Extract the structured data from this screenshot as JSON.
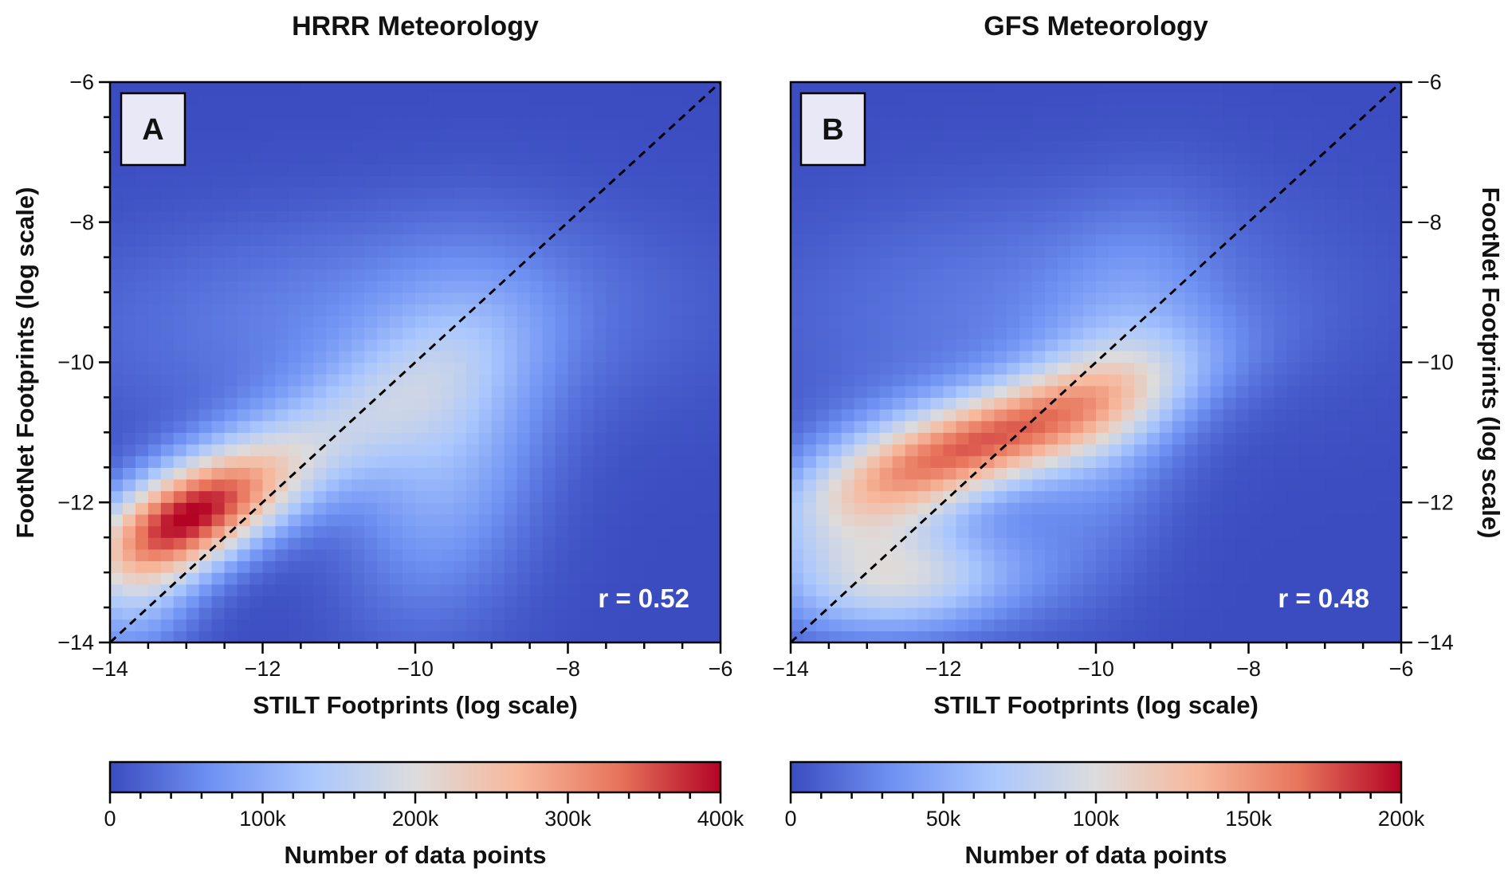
{
  "colors": {
    "colormap": [
      "#3b4cc0",
      "#6f92f3",
      "#aac7fd",
      "#dddcdc",
      "#f7b89c",
      "#e7745b",
      "#b40426"
    ],
    "diagonal_line": "#000000",
    "letter_box_fill": "#e8e8f6",
    "annotation_text": "#ffffff"
  },
  "chart_data": [
    {
      "type": "heatmap",
      "title": "HRRR Meteorology",
      "panel_label": "A",
      "annotation": "r = 0.52",
      "xlabel": "STILT Footprints (log scale)",
      "ylabel": "FootNet Footprints (log scale)",
      "xlim": [
        -14,
        -6
      ],
      "ylim": [
        -14,
        -6
      ],
      "xticks": [
        -14,
        -12,
        -10,
        -8,
        -6
      ],
      "yticks": [
        -14,
        -12,
        -10,
        -8,
        -6
      ],
      "x_tick_labels": [
        "−14",
        "−12",
        "−10",
        "−8",
        "−6"
      ],
      "y_tick_labels": [
        "−14",
        "−12",
        "−10",
        "−8",
        "−6"
      ],
      "y_axis_side": "left",
      "grid": false,
      "reference_line": "y = x",
      "colorbar": {
        "label": "Number of data points",
        "range": [
          0,
          400000
        ],
        "ticks": [
          0,
          100000,
          200000,
          300000,
          400000
        ],
        "tick_labels": [
          "0",
          "100k",
          "200k",
          "300k",
          "400k"
        ]
      },
      "density_peak": {
        "x": -13.0,
        "y": -12.2,
        "count": 330000
      }
    },
    {
      "type": "heatmap",
      "title": "GFS Meteorology",
      "panel_label": "B",
      "annotation": "r = 0.48",
      "xlabel": "STILT Footprints (log scale)",
      "ylabel": "FootNet Footprints (log scale)",
      "xlim": [
        -14,
        -6
      ],
      "ylim": [
        -14,
        -6
      ],
      "xticks": [
        -14,
        -12,
        -10,
        -8,
        -6
      ],
      "yticks": [
        -14,
        -12,
        -10,
        -8,
        -6
      ],
      "x_tick_labels": [
        "−14",
        "−12",
        "−10",
        "−8",
        "−6"
      ],
      "y_tick_labels": [
        "−14",
        "−12",
        "−10",
        "−8",
        "−6"
      ],
      "y_axis_side": "right",
      "grid": false,
      "reference_line": "y = x",
      "colorbar": {
        "label": "Number of data points",
        "range": [
          0,
          200000
        ],
        "ticks": [
          0,
          50000,
          100000,
          150000,
          200000
        ],
        "tick_labels": [
          "0",
          "50k",
          "100k",
          "150k",
          "200k"
        ]
      },
      "density_peak": {
        "x": -11.5,
        "y": -11.1,
        "count": 160000
      }
    }
  ]
}
